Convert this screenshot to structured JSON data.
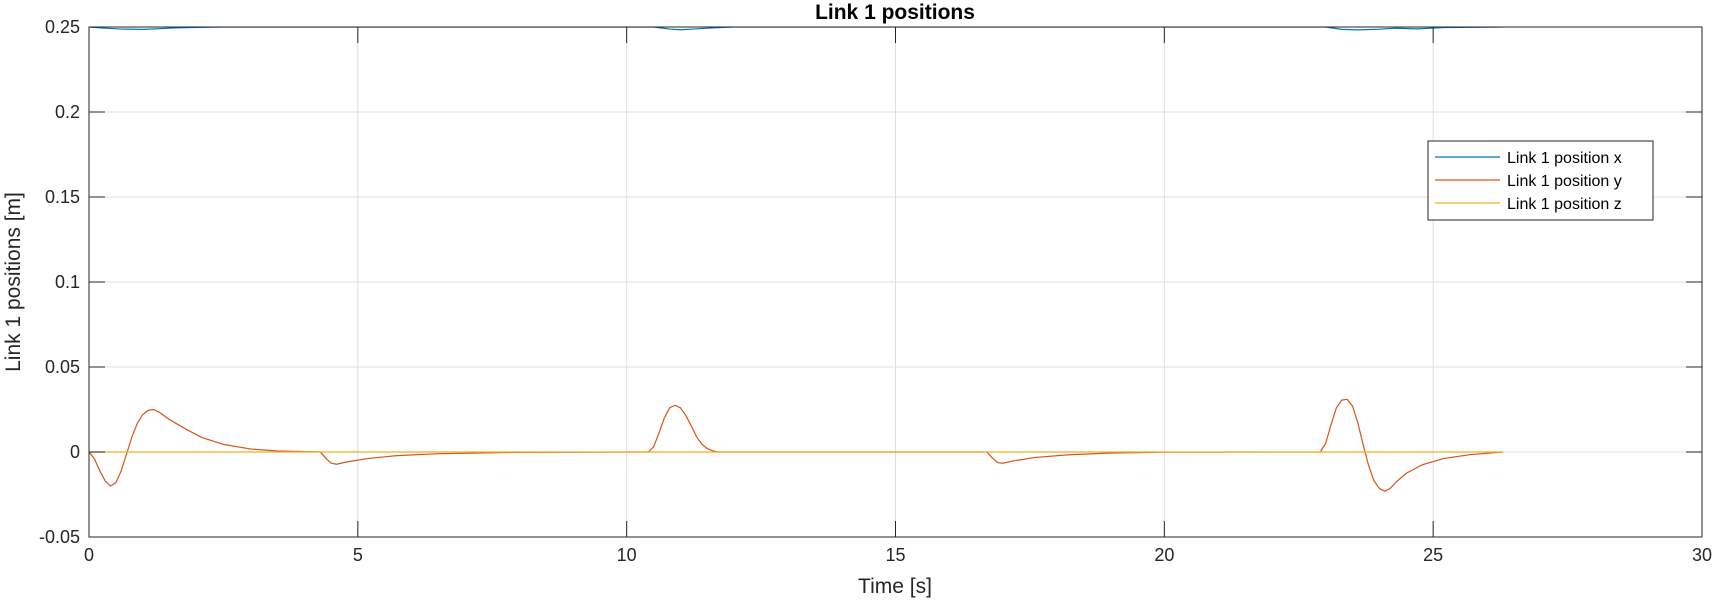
{
  "chart_data": {
    "type": "line",
    "title": "Link 1 positions",
    "xlabel": "Time [s]",
    "ylabel": "Link 1 positions [m]",
    "xlim": [
      0,
      30
    ],
    "ylim": [
      -0.05,
      0.25
    ],
    "xticks": [
      0,
      5,
      10,
      15,
      20,
      25,
      30
    ],
    "xtick_labels": [
      "0",
      "5",
      "10",
      "15",
      "20",
      "25",
      "30"
    ],
    "yticks": [
      -0.05,
      0,
      0.05,
      0.1,
      0.15,
      0.2,
      0.25
    ],
    "ytick_labels": [
      "-0.05",
      "0",
      "0.05",
      "0.1",
      "0.15",
      "0.2",
      "0.25"
    ],
    "grid": true,
    "legend_position": "top-right",
    "series": [
      {
        "name": "Link 1 position x",
        "color": "#0072BD",
        "x": [
          0,
          0.3,
          0.6,
          1.0,
          1.3,
          1.6,
          2.0,
          2.5,
          4.5,
          5.0,
          10.5,
          10.8,
          11.0,
          11.2,
          11.5,
          11.8,
          12.0,
          23.0,
          23.3,
          23.6,
          24.0,
          24.3,
          24.7,
          25.2,
          26.3
        ],
        "values": [
          0.25,
          0.2493,
          0.2488,
          0.2486,
          0.249,
          0.2495,
          0.2498,
          0.25,
          0.25,
          0.25,
          0.25,
          0.2488,
          0.2484,
          0.2487,
          0.2493,
          0.2498,
          0.25,
          0.25,
          0.2486,
          0.2483,
          0.2487,
          0.2493,
          0.2489,
          0.2497,
          0.25
        ]
      },
      {
        "name": "Link 1 position y",
        "color": "#D95319",
        "x": [
          0,
          0.1,
          0.2,
          0.3,
          0.4,
          0.5,
          0.6,
          0.7,
          0.8,
          0.9,
          1.0,
          1.1,
          1.2,
          1.3,
          1.5,
          1.8,
          2.1,
          2.5,
          3.0,
          3.5,
          4.0,
          4.3,
          4.4,
          4.5,
          4.6,
          4.8,
          5.2,
          5.7,
          6.5,
          8.0,
          10.4,
          10.5,
          10.6,
          10.7,
          10.8,
          10.9,
          11.0,
          11.1,
          11.2,
          11.3,
          11.4,
          11.5,
          11.6,
          11.7,
          13.0,
          16.7,
          16.8,
          16.9,
          17.0,
          17.2,
          17.6,
          18.2,
          19.0,
          20.0,
          22.9,
          23.0,
          23.1,
          23.2,
          23.3,
          23.4,
          23.5,
          23.6,
          23.7,
          23.8,
          23.9,
          24.0,
          24.1,
          24.2,
          24.3,
          24.5,
          24.8,
          25.2,
          25.7,
          26.3
        ],
        "values": [
          0,
          -0.004,
          -0.011,
          -0.017,
          -0.02,
          -0.018,
          -0.011,
          -0.001,
          0.009,
          0.017,
          0.022,
          0.0245,
          0.025,
          0.0235,
          0.019,
          0.0135,
          0.0085,
          0.0045,
          0.0018,
          0.0006,
          0.0002,
          0.0001,
          -0.0035,
          -0.0065,
          -0.0072,
          -0.0058,
          -0.0038,
          -0.0022,
          -0.001,
          -0.0002,
          0,
          0.003,
          0.011,
          0.02,
          0.026,
          0.0275,
          0.026,
          0.0215,
          0.0155,
          0.009,
          0.0045,
          0.002,
          0.0007,
          0,
          0,
          0,
          -0.0035,
          -0.0062,
          -0.0066,
          -0.0052,
          -0.0032,
          -0.0017,
          -0.0006,
          -0.0001,
          0,
          0.005,
          0.016,
          0.026,
          0.0305,
          0.031,
          0.027,
          0.017,
          0.004,
          -0.008,
          -0.017,
          -0.0215,
          -0.023,
          -0.0215,
          -0.018,
          -0.0125,
          -0.0075,
          -0.0038,
          -0.0015,
          0
        ]
      },
      {
        "name": "Link 1 position z",
        "color": "#EDB120",
        "x": [
          0,
          26.3
        ],
        "values": [
          0,
          0
        ]
      }
    ]
  }
}
